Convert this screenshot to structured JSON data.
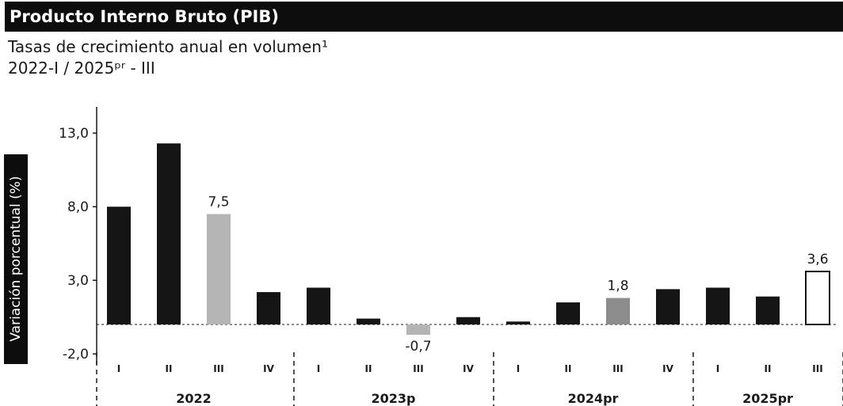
{
  "header": {
    "title": "Producto Interno Bruto (PIB)",
    "subtitle": "Tasas de crecimiento anual en volumen¹",
    "period": "2022-I / 2025ᵖʳ - III"
  },
  "chart_data": {
    "type": "bar",
    "ylabel": "Variación porcentual (%)",
    "ylim": [
      -2.0,
      13.0
    ],
    "yticks": [
      "13,0",
      "8,0",
      "3,0",
      "-2,0"
    ],
    "ytick_values": [
      13.0,
      8.0,
      3.0,
      -2.0
    ],
    "grid": false,
    "categories": [
      "I",
      "II",
      "III",
      "IV",
      "I",
      "II",
      "III",
      "IV",
      "I",
      "II",
      "III",
      "IV",
      "I",
      "II",
      "III"
    ],
    "years": [
      {
        "label": "2022",
        "count": 4
      },
      {
        "label": "2023p",
        "count": 4
      },
      {
        "label": "2024pr",
        "count": 4
      },
      {
        "label": "2025pr",
        "count": 3
      }
    ],
    "values": [
      8.0,
      12.3,
      7.5,
      2.2,
      2.5,
      0.4,
      -0.7,
      0.5,
      0.2,
      1.5,
      1.8,
      2.4,
      2.5,
      1.9,
      3.6
    ],
    "data_labels": [
      {
        "index": 2,
        "text": "7,5"
      },
      {
        "index": 6,
        "text": "-0,7"
      },
      {
        "index": 10,
        "text": "1,8"
      },
      {
        "index": 14,
        "text": "3,6"
      }
    ],
    "colors": {
      "dark": "#141414",
      "highlight": "#b4b4b4",
      "highlight_2024": "#8c8c8c",
      "outline_2025": "#ffffff"
    }
  }
}
